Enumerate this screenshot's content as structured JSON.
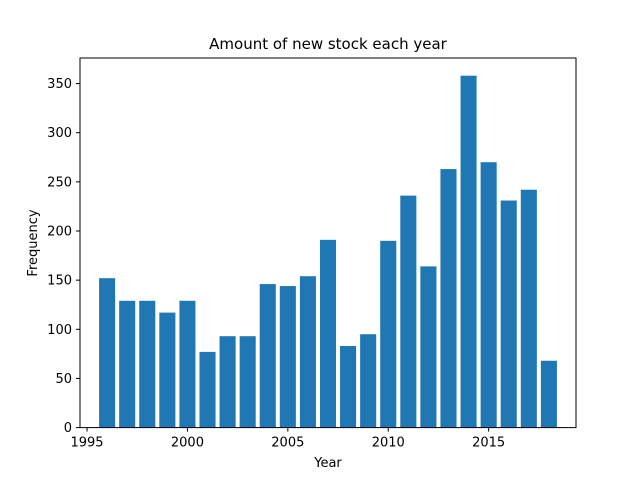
{
  "chart_data": {
    "type": "bar",
    "title": "Amount of new stock each year",
    "xlabel": "Year",
    "ylabel": "Frequency",
    "x": [
      1996,
      1997,
      1998,
      1999,
      2000,
      2001,
      2002,
      2003,
      2004,
      2005,
      2006,
      2007,
      2008,
      2009,
      2010,
      2011,
      2012,
      2013,
      2014,
      2015,
      2016,
      2017,
      2018
    ],
    "values": [
      152,
      129,
      129,
      117,
      129,
      77,
      93,
      93,
      146,
      144,
      154,
      191,
      83,
      95,
      190,
      236,
      164,
      263,
      358,
      270,
      231,
      242,
      68
    ],
    "xlim": [
      1994.65,
      2019.35
    ],
    "ylim": [
      0,
      376
    ],
    "xticks": [
      1995,
      2000,
      2005,
      2010,
      2015
    ],
    "xtick_labels": [
      "1995",
      "2000",
      "2005",
      "2010",
      "2015"
    ],
    "yticks": [
      0,
      50,
      100,
      150,
      200,
      250,
      300,
      350
    ],
    "ytick_labels": [
      "0",
      "50",
      "100",
      "150",
      "200",
      "250",
      "300",
      "350"
    ],
    "bar_width": 0.8,
    "bar_color": "#1f77b4",
    "grid": false,
    "legend": "none"
  }
}
